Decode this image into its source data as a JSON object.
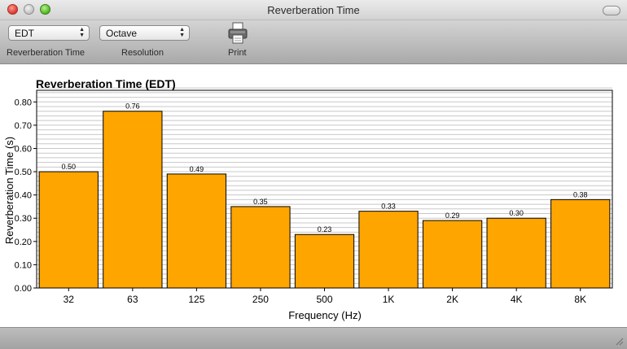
{
  "window": {
    "title": "Reverberation Time"
  },
  "toolbar": {
    "reverb_select_value": "EDT",
    "reverb_label": "Reverberation Time",
    "resolution_select_value": "Octave",
    "resolution_label": "Resolution",
    "print_label": "Print"
  },
  "colors": {
    "bar_fill": "#ffa500",
    "bar_stroke": "#000000",
    "grid": "#c8c8c8"
  },
  "chart_data": {
    "type": "bar",
    "title": "Reverberation Time (EDT)",
    "xlabel": "Frequency (Hz)",
    "ylabel": "Reverberation Time (s)",
    "categories": [
      "32",
      "63",
      "125",
      "250",
      "500",
      "1K",
      "2K",
      "4K",
      "8K"
    ],
    "values": [
      0.5,
      0.76,
      0.49,
      0.35,
      0.23,
      0.33,
      0.29,
      0.3,
      0.38
    ],
    "value_labels": [
      "0.50",
      "0.76",
      "0.49",
      "0.35",
      "0.23",
      "0.33",
      "0.29",
      "0.30",
      "0.38"
    ],
    "yticks": [
      "0.00",
      "0.10",
      "0.20",
      "0.30",
      "0.40",
      "0.50",
      "0.60",
      "0.70",
      "0.80"
    ],
    "ylim": [
      0,
      0.85
    ],
    "minor_grid_step": 0.02,
    "grid": true,
    "legend": "none"
  }
}
